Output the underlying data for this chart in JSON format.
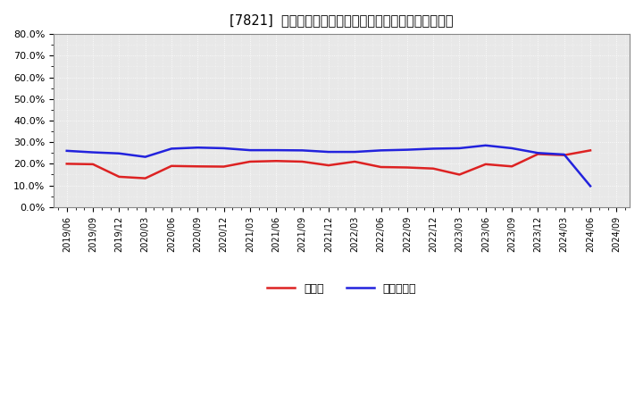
{
  "title": "[7821]  現預金、有利子負債の総資産に対する比率の推移",
  "x_labels": [
    "2019/06",
    "2019/09",
    "2019/12",
    "2020/03",
    "2020/06",
    "2020/09",
    "2020/12",
    "2021/03",
    "2021/06",
    "2021/09",
    "2021/12",
    "2022/03",
    "2022/06",
    "2022/09",
    "2022/12",
    "2023/03",
    "2023/06",
    "2023/09",
    "2023/12",
    "2024/03",
    "2024/06",
    "2024/09"
  ],
  "cash": [
    0.2,
    0.198,
    0.14,
    0.133,
    0.19,
    0.188,
    0.187,
    0.21,
    0.213,
    0.21,
    0.193,
    0.21,
    0.185,
    0.183,
    0.178,
    0.15,
    0.198,
    0.188,
    0.245,
    0.24,
    0.262,
    null
  ],
  "debt": [
    0.26,
    0.253,
    0.248,
    0.232,
    0.27,
    0.275,
    0.272,
    0.263,
    0.263,
    0.262,
    0.255,
    0.255,
    0.262,
    0.265,
    0.27,
    0.272,
    0.285,
    0.272,
    0.25,
    0.243,
    0.097,
    null
  ],
  "cash_color": "#dd2222",
  "debt_color": "#2222dd",
  "bg_color": "#ffffff",
  "plot_bg_color": "#e8e8e8",
  "grid_color": "#ffffff",
  "ylim": [
    0.0,
    0.8
  ],
  "yticks": [
    0.0,
    0.1,
    0.2,
    0.3,
    0.4,
    0.5,
    0.6,
    0.7,
    0.8
  ],
  "legend_cash": "現預金",
  "legend_debt": "有利子負債"
}
